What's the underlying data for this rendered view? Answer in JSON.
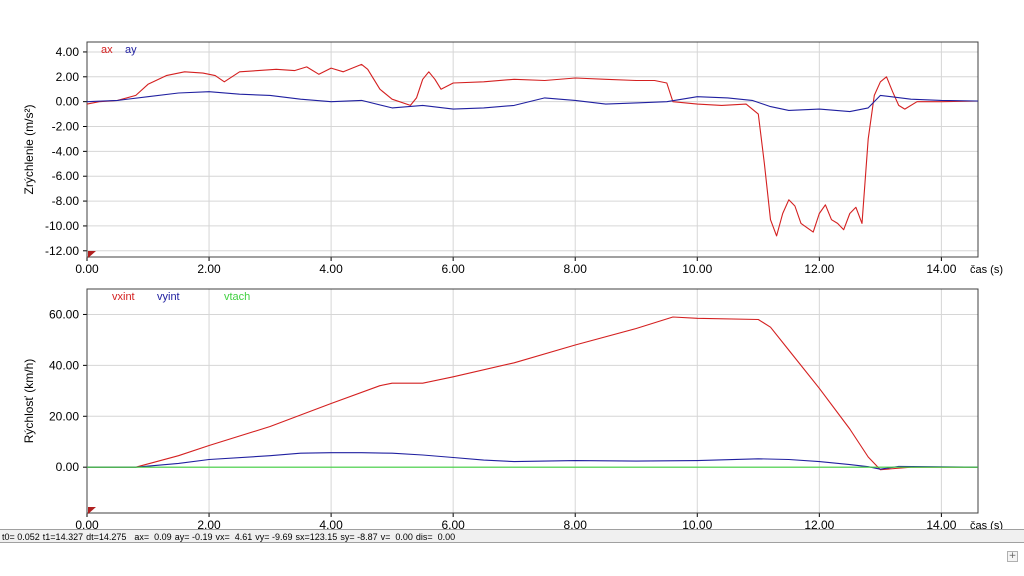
{
  "chart_data": [
    {
      "type": "line",
      "ylabel": "Zrýchlenie (m/s²)",
      "xlabel": "čas (s)",
      "xlim": [
        0,
        14.6
      ],
      "ylim": [
        -12.5,
        4.8
      ],
      "xticks": [
        "0.00",
        "2.00",
        "4.00",
        "6.00",
        "8.00",
        "10.00",
        "12.00",
        "14.00"
      ],
      "xtick_values": [
        0,
        2,
        4,
        6,
        8,
        10,
        12,
        14
      ],
      "yticks": [
        "4.00",
        "2.00",
        "0.00",
        "-2.00",
        "-4.00",
        "-6.00",
        "-8.00",
        "-10.00",
        "-12.00"
      ],
      "ytick_values": [
        4,
        2,
        0,
        -2,
        -4,
        -6,
        -8,
        -10,
        -12
      ],
      "grid": true,
      "legend": "top-left",
      "series": [
        {
          "name": "ax",
          "color": "#d42020",
          "x": [
            0,
            0.2,
            0.5,
            0.8,
            1.0,
            1.3,
            1.6,
            1.9,
            2.1,
            2.25,
            2.5,
            2.8,
            3.1,
            3.4,
            3.6,
            3.8,
            4.0,
            4.2,
            4.5,
            4.6,
            4.8,
            5.0,
            5.3,
            5.4,
            5.5,
            5.6,
            5.7,
            5.8,
            6.0,
            6.5,
            7.0,
            7.5,
            8.0,
            8.5,
            9.0,
            9.3,
            9.5,
            9.6,
            10.0,
            10.4,
            10.8,
            11.0,
            11.1,
            11.2,
            11.3,
            11.4,
            11.5,
            11.6,
            11.7,
            11.9,
            12.0,
            12.1,
            12.2,
            12.3,
            12.4,
            12.5,
            12.6,
            12.7,
            12.8,
            12.9,
            13.0,
            13.1,
            13.2,
            13.3,
            13.4,
            13.6,
            14.0,
            14.6
          ],
          "y": [
            -0.2,
            0.0,
            0.1,
            0.5,
            1.4,
            2.1,
            2.4,
            2.3,
            2.1,
            1.6,
            2.4,
            2.5,
            2.6,
            2.5,
            2.8,
            2.2,
            2.7,
            2.4,
            3.0,
            2.6,
            1.0,
            0.2,
            -0.3,
            0.3,
            1.8,
            2.4,
            1.8,
            1.0,
            1.5,
            1.6,
            1.8,
            1.7,
            1.9,
            1.8,
            1.7,
            1.7,
            1.5,
            0.0,
            -0.2,
            -0.3,
            -0.2,
            -1.0,
            -5.0,
            -9.5,
            -10.8,
            -9.0,
            -7.9,
            -8.4,
            -9.8,
            -10.5,
            -9.0,
            -8.3,
            -9.5,
            -9.8,
            -10.3,
            -9.0,
            -8.5,
            -9.8,
            -3.0,
            0.5,
            1.6,
            2.0,
            0.8,
            -0.3,
            -0.6,
            0.0,
            0.0,
            0.05
          ]
        },
        {
          "name": "ay",
          "color": "#2020a0",
          "x": [
            0,
            0.5,
            1.0,
            1.5,
            2.0,
            2.5,
            3.0,
            3.5,
            4.0,
            4.5,
            5.0,
            5.5,
            6.0,
            6.5,
            7.0,
            7.5,
            8.0,
            8.5,
            9.0,
            9.5,
            10.0,
            10.5,
            10.9,
            11.2,
            11.5,
            12.0,
            12.5,
            12.8,
            13.0,
            13.5,
            14.0,
            14.6
          ],
          "y": [
            0.0,
            0.1,
            0.4,
            0.7,
            0.8,
            0.6,
            0.5,
            0.2,
            0.0,
            0.1,
            -0.5,
            -0.3,
            -0.6,
            -0.5,
            -0.3,
            0.3,
            0.1,
            -0.2,
            -0.1,
            0.0,
            0.4,
            0.3,
            0.1,
            -0.4,
            -0.7,
            -0.6,
            -0.8,
            -0.5,
            0.5,
            0.2,
            0.1,
            0.05
          ]
        }
      ]
    },
    {
      "type": "line",
      "ylabel": "Rýchlosť (km/h)",
      "xlabel": "čas (s)",
      "xlim": [
        0,
        14.6
      ],
      "ylim": [
        -18,
        70
      ],
      "xticks": [
        "0.00",
        "2.00",
        "4.00",
        "6.00",
        "8.00",
        "10.00",
        "12.00",
        "14.00"
      ],
      "xtick_values": [
        0,
        2,
        4,
        6,
        8,
        10,
        12,
        14
      ],
      "yticks": [
        "60.00",
        "40.00",
        "20.00",
        "0.00"
      ],
      "ytick_values": [
        60,
        40,
        20,
        0
      ],
      "grid": true,
      "legend": "top-left",
      "series": [
        {
          "name": "vxint",
          "color": "#d42020",
          "x": [
            0,
            0.8,
            1.5,
            2.0,
            3.0,
            4.0,
            4.8,
            5.0,
            5.3,
            5.5,
            6.0,
            7.0,
            8.0,
            9.0,
            9.6,
            10.0,
            11.0,
            11.2,
            11.5,
            12.0,
            12.5,
            12.8,
            13.0,
            13.5,
            14.6
          ],
          "y": [
            0,
            0,
            4.5,
            8.5,
            16,
            25,
            32,
            33,
            33,
            33,
            35.5,
            41,
            48,
            54.5,
            59,
            58.5,
            58,
            55,
            46,
            31,
            15,
            4,
            -1,
            0,
            0
          ]
        },
        {
          "name": "vyint",
          "color": "#2020a0",
          "x": [
            0,
            0.8,
            1.5,
            2.0,
            3.0,
            3.5,
            4.0,
            4.5,
            5.0,
            5.5,
            6.0,
            6.5,
            7.0,
            8.0,
            9.0,
            10.0,
            11.0,
            11.5,
            12.0,
            12.5,
            12.8,
            13.0,
            13.3,
            14.6
          ],
          "y": [
            0,
            0,
            1.5,
            3,
            4.5,
            5.5,
            5.7,
            5.7,
            5.5,
            4.8,
            3.8,
            2.8,
            2.2,
            2.6,
            2.4,
            2.6,
            3.3,
            3.0,
            2.2,
            1.0,
            0.2,
            -0.8,
            0.3,
            0
          ]
        },
        {
          "name": "vtach",
          "color": "#40d040",
          "x": [
            0,
            14.6
          ],
          "y": [
            0,
            0
          ]
        }
      ]
    }
  ],
  "status": {
    "t0": "t0= 0.052",
    "t1": "t1=14.327",
    "dt": "dt=14.275",
    "ax": "ax=  0.09",
    "ay": "ay= -0.19",
    "vx": "vx=  4.61",
    "vy": "vy= -9.69",
    "sx": "sx=123.15",
    "sy": "sy= -8.87",
    "v": "v=  0.00",
    "dis": "dis=  0.00"
  }
}
